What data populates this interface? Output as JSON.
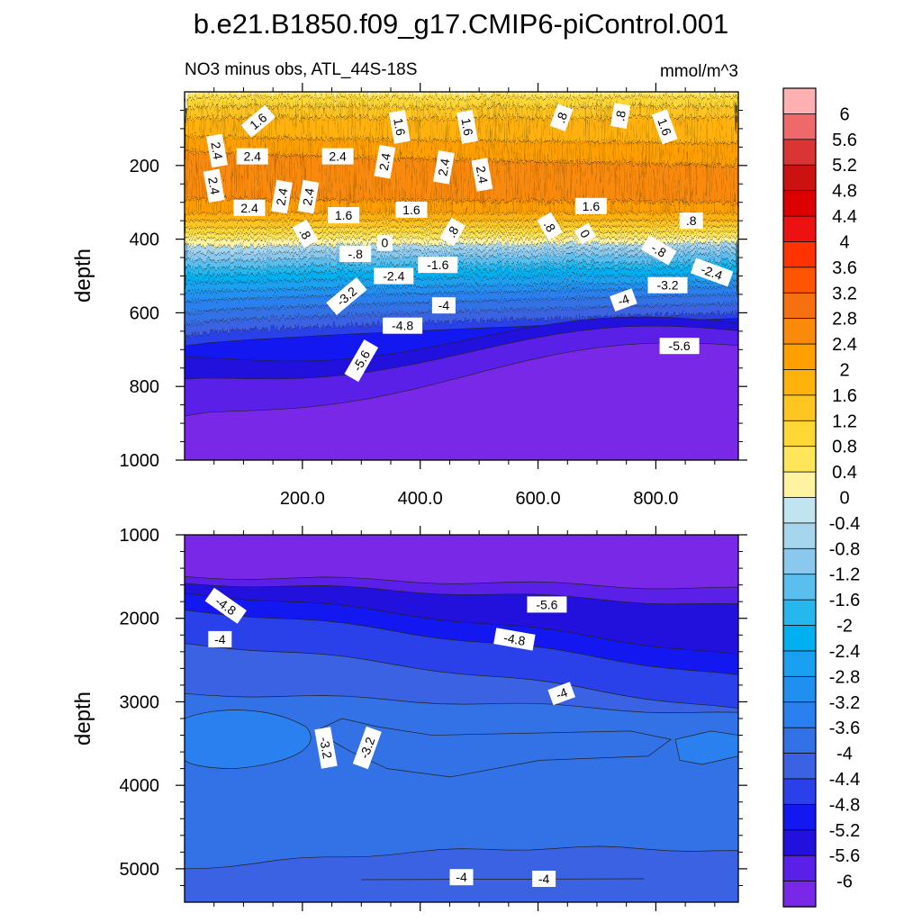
{
  "title": "b.e21.B1850.f09_g17.CMIP6-piControl.001",
  "chart_data": [
    {
      "type": "heatmap",
      "panel": "upper",
      "subtitle": "NO3 minus obs, ATL_44S-18S",
      "units": "mmol/m^3",
      "ylabel": "depth",
      "xlabel": "",
      "xlim": [
        0,
        940
      ],
      "ylim": [
        1000,
        0
      ],
      "x_tick_labels": [
        "200.0",
        "400.0",
        "600.0",
        "800.0"
      ],
      "x_ticks": [
        200,
        400,
        600,
        800
      ],
      "y_tick_labels": [
        "200",
        "400",
        "600",
        "800",
        "1000"
      ],
      "y_ticks": [
        200,
        400,
        600,
        800,
        1000
      ],
      "contour_labels": [
        {
          "text": "1.6",
          "x": 125,
          "y": 80,
          "angle": -40
        },
        {
          "text": "2.4",
          "x": 55,
          "y": 160,
          "angle": 80
        },
        {
          "text": "2.4",
          "x": 115,
          "y": 175,
          "angle": 0
        },
        {
          "text": "2.4",
          "x": 260,
          "y": 175,
          "angle": 0
        },
        {
          "text": "1.6",
          "x": 365,
          "y": 95,
          "angle": 80
        },
        {
          "text": "2.4",
          "x": 340,
          "y": 190,
          "angle": -80
        },
        {
          "text": "1.6",
          "x": 480,
          "y": 95,
          "angle": 80
        },
        {
          "text": "2.4",
          "x": 440,
          "y": 205,
          "angle": -80
        },
        {
          "text": "2.4",
          "x": 505,
          "y": 225,
          "angle": 80
        },
        {
          "text": ".8",
          "x": 640,
          "y": 70,
          "angle": -70
        },
        {
          "text": ".8",
          "x": 740,
          "y": 65,
          "angle": -80
        },
        {
          "text": "1.6",
          "x": 815,
          "y": 95,
          "angle": 70
        },
        {
          "text": "2.4",
          "x": 50,
          "y": 255,
          "angle": 80
        },
        {
          "text": "2.4",
          "x": 110,
          "y": 315,
          "angle": 0
        },
        {
          "text": "2.4",
          "x": 165,
          "y": 285,
          "angle": -80
        },
        {
          "text": "2.4",
          "x": 210,
          "y": 285,
          "angle": -80
        },
        {
          "text": "1.6",
          "x": 270,
          "y": 335,
          "angle": 0
        },
        {
          "text": "1.6",
          "x": 385,
          "y": 320,
          "angle": 0
        },
        {
          "text": "1.6",
          "x": 690,
          "y": 310,
          "angle": 0
        },
        {
          "text": ".8",
          "x": 205,
          "y": 385,
          "angle": 60
        },
        {
          "text": "0",
          "x": 340,
          "y": 410,
          "angle": 0
        },
        {
          "text": ".8",
          "x": 455,
          "y": 380,
          "angle": -60
        },
        {
          "text": ".8",
          "x": 620,
          "y": 365,
          "angle": 60
        },
        {
          "text": "0",
          "x": 680,
          "y": 385,
          "angle": 60
        },
        {
          "text": ".8",
          "x": 860,
          "y": 350,
          "angle": 0
        },
        {
          "text": "-.8",
          "x": 290,
          "y": 440,
          "angle": 0
        },
        {
          "text": "-1.6",
          "x": 430,
          "y": 470,
          "angle": 0
        },
        {
          "text": "-.8",
          "x": 805,
          "y": 430,
          "angle": 30
        },
        {
          "text": "-2.4",
          "x": 355,
          "y": 500,
          "angle": 0
        },
        {
          "text": "-2.4",
          "x": 895,
          "y": 490,
          "angle": 20
        },
        {
          "text": "-3.2",
          "x": 275,
          "y": 555,
          "angle": -40
        },
        {
          "text": "-3.2",
          "x": 820,
          "y": 525,
          "angle": 0
        },
        {
          "text": "-4",
          "x": 440,
          "y": 580,
          "angle": 0
        },
        {
          "text": "-4",
          "x": 745,
          "y": 565,
          "angle": -20
        },
        {
          "text": "-4.8",
          "x": 370,
          "y": 635,
          "angle": 0
        },
        {
          "text": "-5.6",
          "x": 300,
          "y": 730,
          "angle": -60
        },
        {
          "text": "-5.6",
          "x": 840,
          "y": 690,
          "angle": 0
        }
      ]
    },
    {
      "type": "heatmap",
      "panel": "lower",
      "ylabel": "depth",
      "xlim": [
        0,
        940
      ],
      "ylim": [
        5400,
        1000
      ],
      "y_tick_labels": [
        "1000",
        "2000",
        "3000",
        "4000",
        "5000"
      ],
      "y_ticks": [
        1000,
        2000,
        3000,
        4000,
        5000
      ],
      "x_ticks": [
        200,
        400,
        600,
        800
      ],
      "contour_labels": [
        {
          "text": "-4.8",
          "x": 70,
          "y": 1850,
          "angle": 35
        },
        {
          "text": "-5.6",
          "x": 615,
          "y": 1835,
          "angle": 0
        },
        {
          "text": "-4",
          "x": 60,
          "y": 2250,
          "angle": 0
        },
        {
          "text": "-4.8",
          "x": 560,
          "y": 2250,
          "angle": 10
        },
        {
          "text": "-4",
          "x": 640,
          "y": 2900,
          "angle": -20
        },
        {
          "text": "-3.2",
          "x": 240,
          "y": 3550,
          "angle": 80
        },
        {
          "text": "-3.2",
          "x": 310,
          "y": 3550,
          "angle": -70
        },
        {
          "text": "-4",
          "x": 470,
          "y": 5100,
          "angle": 0
        },
        {
          "text": "-4",
          "x": 610,
          "y": 5120,
          "angle": 0
        }
      ]
    },
    {
      "type": "colorbar",
      "levels": [
        "6",
        "5.6",
        "5.2",
        "4.8",
        "4.4",
        "4",
        "3.6",
        "3.2",
        "2.8",
        "2.4",
        "2",
        "1.6",
        "1.2",
        "0.8",
        "0.4",
        "0",
        "-0.4",
        "-0.8",
        "-1.2",
        "-1.6",
        "-2",
        "-2.4",
        "-2.8",
        "-3.2",
        "-3.6",
        "-4",
        "-4.4",
        "-4.8",
        "-5.2",
        "-5.6",
        "-6"
      ],
      "colors": [
        "#ffb0b0",
        "#ee6a6a",
        "#d93535",
        "#cc1111",
        "#dd0000",
        "#ee1111",
        "#ff3300",
        "#ff5500",
        "#f47010",
        "#f98a0a",
        "#ffa000",
        "#ffb20a",
        "#ffc520",
        "#ffd835",
        "#ffe55a",
        "#fff2a0",
        "#c0e4f0",
        "#a6d6ee",
        "#8ac8ee",
        "#5abfee",
        "#26b7ee",
        "#00b0f0",
        "#1aa0f0",
        "#2090f0",
        "#2a80ee",
        "#3272e6",
        "#3a62e2",
        "#2a40e8",
        "#1418f0",
        "#2210dc",
        "#5a20e8",
        "#7a28e8"
      ]
    }
  ]
}
